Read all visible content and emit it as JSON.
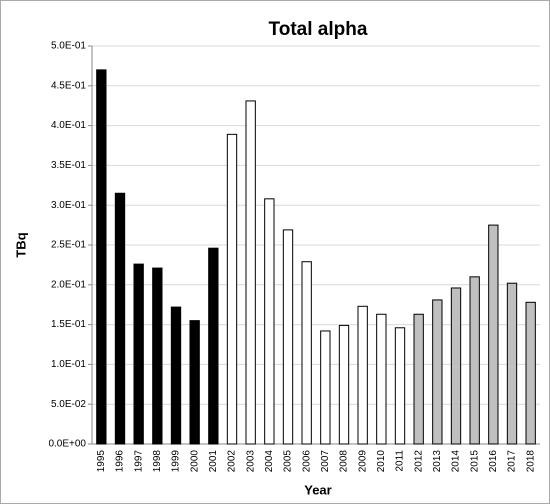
{
  "chart_data": {
    "type": "bar",
    "title": "Total alpha",
    "x_label": "Year",
    "y_label": "TBq",
    "categories": [
      "1995",
      "1996",
      "1997",
      "1998",
      "1999",
      "2000",
      "2001",
      "2002",
      "2003",
      "2004",
      "2005",
      "2006",
      "2007",
      "2008",
      "2009",
      "2010",
      "2011",
      "2012",
      "2013",
      "2014",
      "2015",
      "2016",
      "2017",
      "2018"
    ],
    "values": [
      0.47,
      0.315,
      0.226,
      0.221,
      0.172,
      0.155,
      0.246,
      0.389,
      0.431,
      0.308,
      0.269,
      0.229,
      0.142,
      0.149,
      0.173,
      0.163,
      0.146,
      0.163,
      0.181,
      0.196,
      0.21,
      0.275,
      0.202,
      0.178
    ],
    "colors": [
      "#000000",
      "#000000",
      "#000000",
      "#000000",
      "#000000",
      "#000000",
      "#000000",
      "#ffffff",
      "#ffffff",
      "#ffffff",
      "#ffffff",
      "#ffffff",
      "#ffffff",
      "#ffffff",
      "#ffffff",
      "#ffffff",
      "#ffffff",
      "#c0c0c0",
      "#c0c0c0",
      "#c0c0c0",
      "#c0c0c0",
      "#c0c0c0",
      "#c0c0c0",
      "#c0c0c0"
    ],
    "ylim": [
      0,
      0.5
    ],
    "yticks": [
      {
        "value": 0,
        "label": "0.0E+00"
      },
      {
        "value": 0.05,
        "label": "5.0E-02"
      },
      {
        "value": 0.1,
        "label": "1.0E-01"
      },
      {
        "value": 0.15,
        "label": "1.5E-01"
      },
      {
        "value": 0.2,
        "label": "2.0E-01"
      },
      {
        "value": 0.25,
        "label": "2.5E-01"
      },
      {
        "value": 0.3,
        "label": "3.0E-01"
      },
      {
        "value": 0.35,
        "label": "3.5E-01"
      },
      {
        "value": 0.4,
        "label": "4.0E-01"
      },
      {
        "value": 0.45,
        "label": "4.5E-01"
      },
      {
        "value": 0.5,
        "label": "5.0E-01"
      }
    ],
    "grid": true
  }
}
